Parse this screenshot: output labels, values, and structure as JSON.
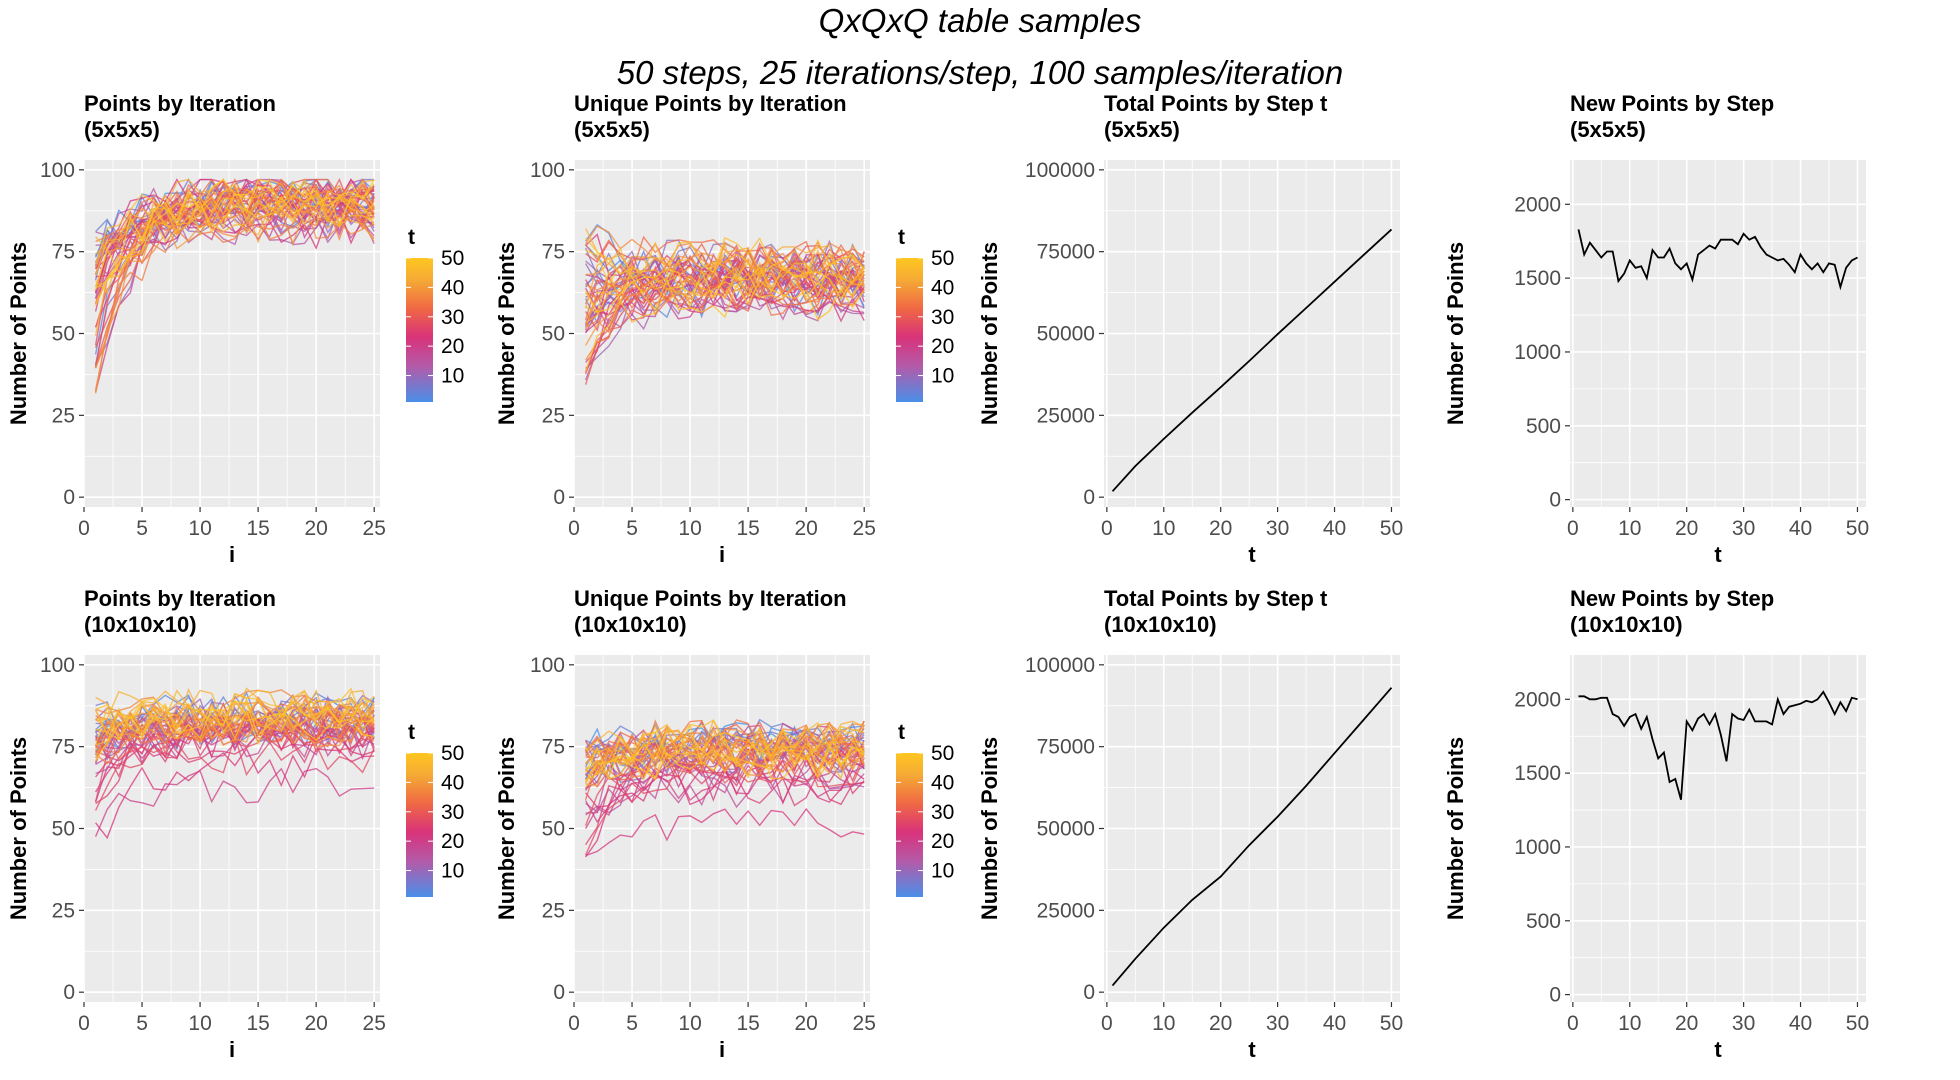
{
  "title": "QxQxQ table samples",
  "subtitle": "50 steps, 25 iterations/step, 100 samples/iteration",
  "colors": {
    "panel_bg": "#ebebeb",
    "grid": "#ffffff",
    "tick_text": "#4d4d4d",
    "line": "#000000",
    "gradient": [
      "#4a8fe8",
      "#d9337a",
      "#f06844",
      "#f5ab35",
      "#ffc61f"
    ]
  },
  "chart_data": [
    {
      "id": "p11",
      "type": "line",
      "title": "Points by Iteration",
      "subtitle": "(5x5x5)",
      "xlabel": "i",
      "ylabel": "Number of Points",
      "xlim": [
        0,
        25.5
      ],
      "ylim": [
        -3,
        103
      ],
      "xticks": [
        0,
        5,
        10,
        15,
        20,
        25
      ],
      "yticks": [
        0,
        25,
        50,
        75,
        100
      ],
      "series_mode": "colored",
      "series_count": 50,
      "x_start": 1,
      "x_end": 25,
      "series_envelope": {
        "start_low": 36,
        "start_high": 80,
        "plateau_low": 74,
        "plateau_high": 96
      },
      "legend": {
        "title": "t",
        "labels": [
          10,
          20,
          30,
          40,
          50
        ],
        "range": [
          1,
          50
        ]
      }
    },
    {
      "id": "p12",
      "type": "line",
      "title": "Unique Points by Iteration",
      "subtitle": "(5x5x5)",
      "xlabel": "i",
      "ylabel": "Number of Points",
      "xlim": [
        0,
        25.5
      ],
      "ylim": [
        -3,
        103
      ],
      "xticks": [
        0,
        5,
        10,
        15,
        20,
        25
      ],
      "yticks": [
        0,
        25,
        50,
        75,
        100
      ],
      "series_mode": "colored",
      "series_count": 50,
      "x_start": 1,
      "x_end": 25,
      "series_envelope": {
        "start_low": 36,
        "start_high": 83,
        "plateau_low": 50,
        "plateau_high": 80
      },
      "legend": {
        "title": "t",
        "labels": [
          10,
          20,
          30,
          40,
          50
        ],
        "range": [
          1,
          50
        ]
      }
    },
    {
      "id": "p13",
      "type": "line",
      "title": "Total Points by Step t",
      "subtitle": "(5x5x5)",
      "xlabel": "t",
      "ylabel": "Number of Points",
      "xlim": [
        -0.5,
        51.5
      ],
      "ylim": [
        -3000,
        103000
      ],
      "xticks": [
        0,
        10,
        20,
        30,
        40,
        50
      ],
      "yticks": [
        0,
        25000,
        50000,
        75000,
        100000
      ],
      "series_mode": "single",
      "x": [
        1,
        5,
        10,
        15,
        20,
        25,
        30,
        35,
        40,
        45,
        50
      ],
      "y": [
        1800,
        9500,
        17800,
        25800,
        33600,
        41600,
        49800,
        57800,
        65800,
        73800,
        81800
      ]
    },
    {
      "id": "p14",
      "type": "line",
      "title": "New Points by Step",
      "subtitle": "(5x5x5)",
      "xlabel": "t",
      "ylabel": "Number of Points",
      "xlim": [
        -0.5,
        51.5
      ],
      "ylim": [
        -50,
        2300
      ],
      "xticks": [
        0,
        10,
        20,
        30,
        40,
        50
      ],
      "yticks": [
        0,
        500,
        1000,
        1500,
        2000
      ],
      "series_mode": "single",
      "x": [
        1,
        2,
        3,
        4,
        5,
        6,
        7,
        8,
        9,
        10,
        11,
        12,
        13,
        14,
        15,
        16,
        17,
        18,
        19,
        20,
        21,
        22,
        23,
        24,
        25,
        26,
        27,
        28,
        29,
        30,
        31,
        32,
        33,
        34,
        35,
        36,
        37,
        38,
        39,
        40,
        41,
        42,
        43,
        44,
        45,
        46,
        47,
        48,
        49,
        50
      ],
      "y": [
        1830,
        1660,
        1740,
        1690,
        1640,
        1680,
        1680,
        1480,
        1530,
        1620,
        1570,
        1580,
        1500,
        1690,
        1640,
        1640,
        1700,
        1600,
        1560,
        1600,
        1490,
        1660,
        1690,
        1720,
        1700,
        1760,
        1760,
        1760,
        1730,
        1800,
        1760,
        1780,
        1710,
        1660,
        1640,
        1620,
        1630,
        1590,
        1540,
        1660,
        1600,
        1560,
        1600,
        1540,
        1600,
        1590,
        1440,
        1570,
        1620,
        1640
      ]
    },
    {
      "id": "p21",
      "type": "line",
      "title": "Points by Iteration",
      "subtitle": "(10x10x10)",
      "xlabel": "i",
      "ylabel": "Number of Points",
      "xlim": [
        0,
        25.5
      ],
      "ylim": [
        -3,
        103
      ],
      "xticks": [
        0,
        5,
        10,
        15,
        20,
        25
      ],
      "yticks": [
        0,
        25,
        50,
        75,
        100
      ],
      "series_mode": "colored",
      "series_count": 50,
      "x_start": 1,
      "x_end": 25,
      "series_envelope": {
        "start_low": 39,
        "start_high": 92,
        "plateau_low": 62,
        "plateau_high": 96
      },
      "legend": {
        "title": "t",
        "labels": [
          10,
          20,
          30,
          40,
          50
        ],
        "range": [
          1,
          50
        ]
      }
    },
    {
      "id": "p22",
      "type": "line",
      "title": "Unique Points by Iteration",
      "subtitle": "(10x10x10)",
      "xlabel": "i",
      "ylabel": "Number of Points",
      "xlim": [
        0,
        25.5
      ],
      "ylim": [
        -3,
        103
      ],
      "xticks": [
        0,
        5,
        10,
        15,
        20,
        25
      ],
      "yticks": [
        0,
        25,
        50,
        75,
        100
      ],
      "series_mode": "colored",
      "series_count": 50,
      "x_start": 1,
      "x_end": 25,
      "series_envelope": {
        "start_low": 38,
        "start_high": 90,
        "plateau_low": 52,
        "plateau_high": 86
      },
      "legend": {
        "title": "t",
        "labels": [
          10,
          20,
          30,
          40,
          50
        ],
        "range": [
          1,
          50
        ]
      }
    },
    {
      "id": "p23",
      "type": "line",
      "title": "Total Points by Step t",
      "subtitle": "(10x10x10)",
      "xlabel": "t",
      "ylabel": "Number of Points",
      "xlim": [
        -0.5,
        51.5
      ],
      "ylim": [
        -3000,
        103000
      ],
      "xticks": [
        0,
        10,
        20,
        30,
        40,
        50
      ],
      "yticks": [
        0,
        25000,
        50000,
        75000,
        100000
      ],
      "series_mode": "single",
      "x": [
        1,
        5,
        10,
        15,
        20,
        25,
        30,
        35,
        40,
        45,
        50
      ],
      "y": [
        2000,
        10200,
        19700,
        28200,
        35300,
        44900,
        53600,
        63000,
        73000,
        83000,
        93000
      ]
    },
    {
      "id": "p24",
      "type": "line",
      "title": "New Points by Step",
      "subtitle": "(10x10x10)",
      "xlabel": "t",
      "ylabel": "Number of Points",
      "xlim": [
        -0.5,
        51.5
      ],
      "ylim": [
        -50,
        2300
      ],
      "xticks": [
        0,
        10,
        20,
        30,
        40,
        50
      ],
      "yticks": [
        0,
        500,
        1000,
        1500,
        2000
      ],
      "series_mode": "single",
      "x": [
        1,
        2,
        3,
        4,
        5,
        6,
        7,
        8,
        9,
        10,
        11,
        12,
        13,
        14,
        15,
        16,
        17,
        18,
        19,
        20,
        21,
        22,
        23,
        24,
        25,
        26,
        27,
        28,
        29,
        30,
        31,
        32,
        33,
        34,
        35,
        36,
        37,
        38,
        39,
        40,
        41,
        42,
        43,
        44,
        45,
        46,
        47,
        48,
        49,
        50
      ],
      "y": [
        2020,
        2020,
        2000,
        2000,
        2010,
        2010,
        1900,
        1880,
        1820,
        1880,
        1900,
        1800,
        1880,
        1730,
        1600,
        1640,
        1440,
        1460,
        1320,
        1850,
        1790,
        1870,
        1900,
        1830,
        1900,
        1760,
        1580,
        1900,
        1870,
        1860,
        1930,
        1850,
        1850,
        1850,
        1830,
        2000,
        1900,
        1950,
        1960,
        1970,
        1990,
        1980,
        2000,
        2050,
        1980,
        1900,
        1980,
        1920,
        2010,
        2000
      ]
    }
  ]
}
